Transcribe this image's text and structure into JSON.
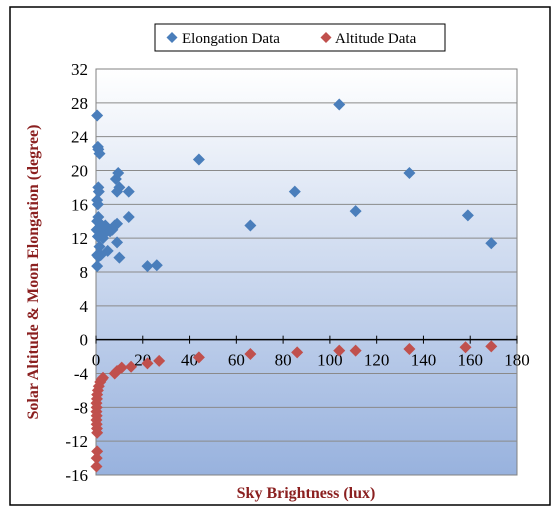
{
  "chart_data": {
    "type": "scatter",
    "title": "",
    "xlabel": "Sky Brightness (lux)",
    "ylabel": "Solar Altitude & Moon Elongation (degree)",
    "xlim": [
      0,
      180
    ],
    "ylim": [
      -16,
      32
    ],
    "x_ticks": [
      0,
      20,
      40,
      60,
      80,
      100,
      120,
      140,
      160,
      180
    ],
    "y_ticks": [
      -16,
      -12,
      -8,
      -4,
      0,
      4,
      8,
      12,
      16,
      20,
      24,
      28,
      32
    ],
    "grid": true,
    "legend_position": "top-center",
    "series": [
      {
        "name": "Elongation Data",
        "color": "#4a7ebb",
        "marker": "diamond",
        "points": [
          [
            0.5,
            26.5
          ],
          [
            1,
            22.5
          ],
          [
            1.5,
            22
          ],
          [
            0.8,
            22.8
          ],
          [
            1,
            18
          ],
          [
            1.2,
            17.5
          ],
          [
            0.5,
            16.5
          ],
          [
            0.8,
            16
          ],
          [
            1,
            14.5
          ],
          [
            0.5,
            14
          ],
          [
            1.5,
            13.8
          ],
          [
            2,
            13.5
          ],
          [
            0.3,
            13
          ],
          [
            1,
            12.8
          ],
          [
            2.5,
            12.5
          ],
          [
            3,
            12
          ],
          [
            0.8,
            12.2
          ],
          [
            1.5,
            11
          ],
          [
            0.5,
            10
          ],
          [
            1,
            9.8
          ],
          [
            0.5,
            8.7
          ],
          [
            2,
            10
          ],
          [
            3.5,
            12.5
          ],
          [
            4,
            13.5
          ],
          [
            5,
            10.5
          ],
          [
            6,
            12.8
          ],
          [
            7,
            13
          ],
          [
            8,
            13.5
          ],
          [
            9,
            13.7
          ],
          [
            8.5,
            19
          ],
          [
            9.5,
            19.7
          ],
          [
            9,
            17.5
          ],
          [
            10,
            18
          ],
          [
            14,
            17.5
          ],
          [
            14,
            14.5
          ],
          [
            9,
            11.5
          ],
          [
            10,
            9.7
          ],
          [
            22,
            8.7
          ],
          [
            26,
            8.8
          ],
          [
            44,
            21.3
          ],
          [
            66,
            13.5
          ],
          [
            85,
            17.5
          ],
          [
            104,
            27.8
          ],
          [
            111,
            15.2
          ],
          [
            134,
            19.7
          ],
          [
            159,
            14.7
          ],
          [
            169,
            11.4
          ]
        ]
      },
      {
        "name": "Altitude Data",
        "color": "#c0504d",
        "marker": "diamond",
        "points": [
          [
            0.2,
            -15
          ],
          [
            0.3,
            -14
          ],
          [
            0.5,
            -13.2
          ],
          [
            0.5,
            -11
          ],
          [
            0.4,
            -10.5
          ],
          [
            0.3,
            -10
          ],
          [
            0.2,
            -9.5
          ],
          [
            0.3,
            -9
          ],
          [
            0.2,
            -8.5
          ],
          [
            0.3,
            -8
          ],
          [
            0.2,
            -7.5
          ],
          [
            0.4,
            -7
          ],
          [
            0.5,
            -6.5
          ],
          [
            0.8,
            -6
          ],
          [
            1.2,
            -5.5
          ],
          [
            1.8,
            -5
          ],
          [
            2.5,
            -4.7
          ],
          [
            3,
            -4.5
          ],
          [
            8,
            -4
          ],
          [
            9,
            -3.7
          ],
          [
            11,
            -3.3
          ],
          [
            15,
            -3.2
          ],
          [
            22,
            -2.8
          ],
          [
            27,
            -2.5
          ],
          [
            44,
            -2.1
          ],
          [
            66,
            -1.7
          ],
          [
            86,
            -1.5
          ],
          [
            104,
            -1.3
          ],
          [
            111,
            -1.3
          ],
          [
            134,
            -1.1
          ],
          [
            158,
            -0.9
          ],
          [
            169,
            -0.8
          ]
        ]
      }
    ]
  }
}
